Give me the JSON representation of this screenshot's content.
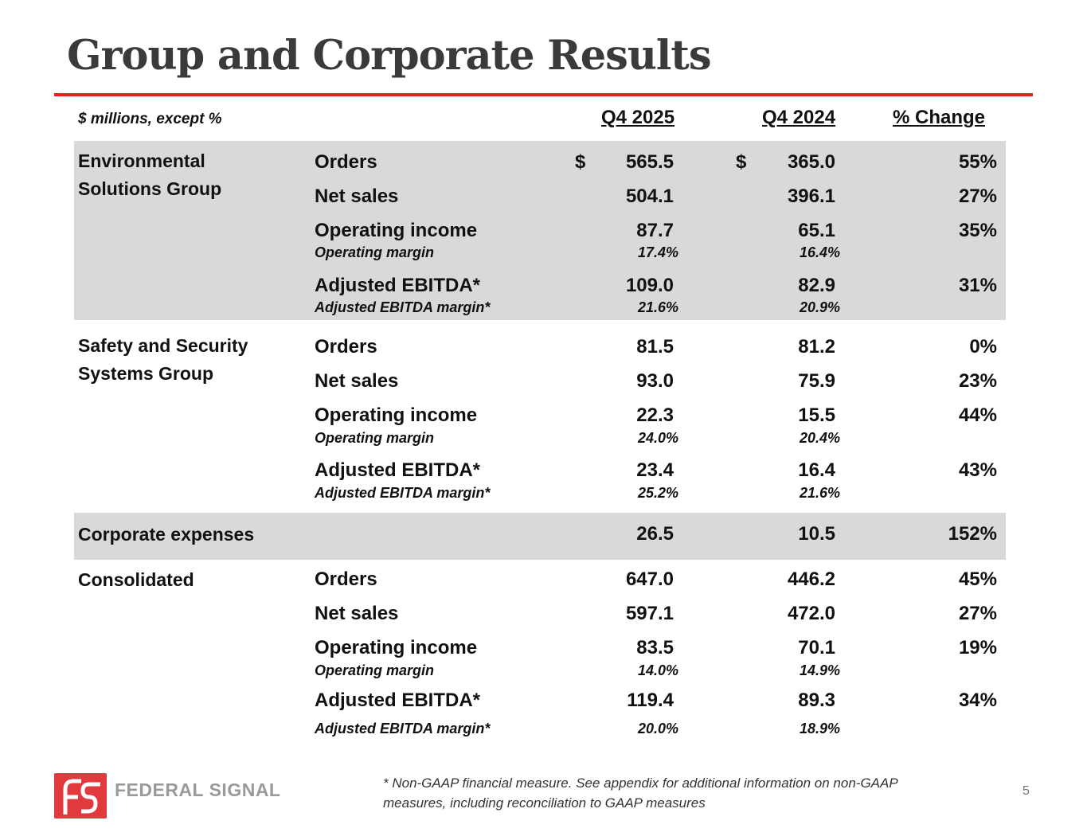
{
  "title": "Group and Corporate Results",
  "units_note": "$ millions, except %",
  "columns": {
    "current": "Q4 2025",
    "prior": "Q4 2024",
    "change": "% Change"
  },
  "currency_symbol": "$",
  "esg": {
    "name_line1": "Environmental",
    "name_line2": "Solutions Group",
    "rows": [
      {
        "label": "Orders",
        "current": "565.5",
        "prior": "365.0",
        "change": "55%"
      },
      {
        "label": "Net sales",
        "current": "504.1",
        "prior": "396.1",
        "change": "27%"
      },
      {
        "label": "Operating income",
        "current": "87.7",
        "prior": "65.1",
        "change": "35%",
        "sub_label": "Operating margin",
        "sub_current": "17.4%",
        "sub_prior": "16.4%"
      },
      {
        "label": "Adjusted EBITDA*",
        "current": "109.0",
        "prior": "82.9",
        "change": "31%",
        "sub_label": "Adjusted EBITDA margin*",
        "sub_current": "21.6%",
        "sub_prior": "20.9%"
      }
    ]
  },
  "sssg": {
    "name_line1": "Safety and Security",
    "name_line2": "Systems Group",
    "rows": [
      {
        "label": "Orders",
        "current": "81.5",
        "prior": "81.2",
        "change": "0%"
      },
      {
        "label": "Net sales",
        "current": "93.0",
        "prior": "75.9",
        "change": "23%"
      },
      {
        "label": "Operating income",
        "current": "22.3",
        "prior": "15.5",
        "change": "44%",
        "sub_label": "Operating margin",
        "sub_current": "24.0%",
        "sub_prior": "20.4%"
      },
      {
        "label": "Adjusted EBITDA*",
        "current": "23.4",
        "prior": "16.4",
        "change": "43%",
        "sub_label": "Adjusted EBITDA margin*",
        "sub_current": "25.2%",
        "sub_prior": "21.6%"
      }
    ]
  },
  "corporate": {
    "label": "Corporate expenses",
    "current": "26.5",
    "prior": "10.5",
    "change": "152%"
  },
  "consolidated": {
    "name": "Consolidated",
    "rows": [
      {
        "label": "Orders",
        "current": "647.0",
        "prior": "446.2",
        "change": "45%"
      },
      {
        "label": "Net sales",
        "current": "597.1",
        "prior": "472.0",
        "change": "27%"
      },
      {
        "label": "Operating income",
        "current": "83.5",
        "prior": "70.1",
        "change": "19%",
        "sub_label": "Operating margin",
        "sub_current": "14.0%",
        "sub_prior": "14.9%"
      },
      {
        "label": "Adjusted EBITDA*",
        "current": "119.4",
        "prior": "89.3",
        "change": "34%",
        "sub_label": "Adjusted EBITDA margin*",
        "sub_current": "20.0%",
        "sub_prior": "18.9%"
      }
    ]
  },
  "logo_text": "FEDERAL SIGNAL",
  "footnote": "* Non-GAAP financial measure. See appendix for additional information on non-GAAP measures, including reconciliation to GAAP measures",
  "page_number": "5",
  "colors": {
    "accent": "#e2231a",
    "band": "#d9d9d9",
    "title": "#3a3a3a",
    "logo_red": "#e03a3e",
    "logo_gray": "#9a9a9a"
  }
}
